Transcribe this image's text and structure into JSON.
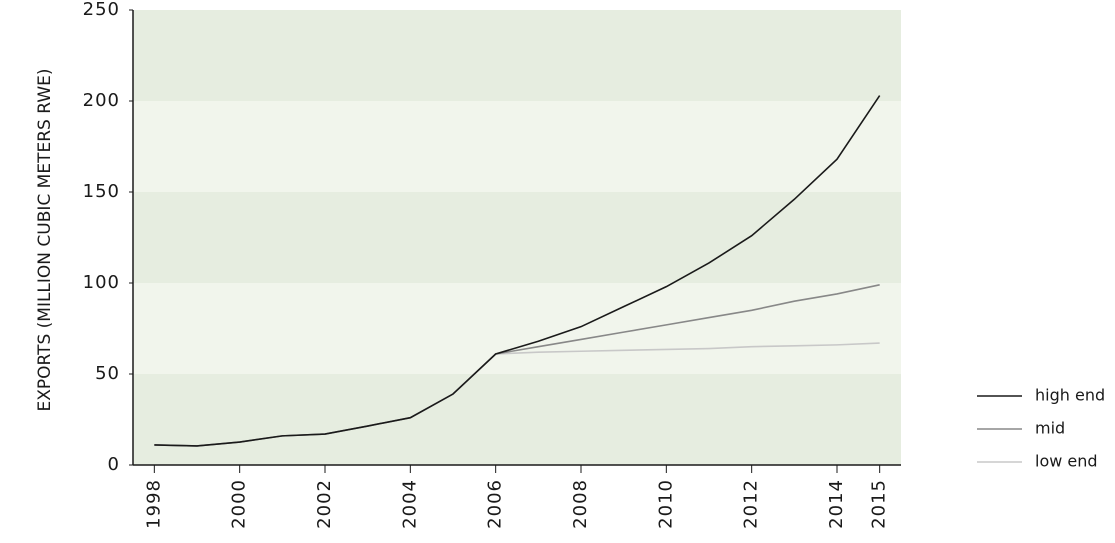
{
  "chart_data": {
    "type": "line",
    "y_label": "EXPORTS (MILLION CUBIC METERS RWE)",
    "x": [
      1998,
      1999,
      2000,
      2001,
      2002,
      2003,
      2004,
      2005,
      2006,
      2007,
      2008,
      2009,
      2010,
      2011,
      2012,
      2013,
      2014,
      2015
    ],
    "series": [
      {
        "name": "high end",
        "color": "#1a1a1a",
        "values": [
          11,
          10.5,
          12.6,
          16,
          17,
          21.4,
          26,
          39,
          61,
          68,
          76,
          87,
          98,
          111,
          126,
          146,
          168,
          203
        ]
      },
      {
        "name": "mid",
        "color": "#888888",
        "values": [
          11,
          10.5,
          12.6,
          16,
          17,
          21.4,
          26,
          39,
          61,
          65,
          69,
          73,
          77,
          81,
          85,
          90,
          94,
          99
        ]
      },
      {
        "name": "low end",
        "color": "#c8c8c8",
        "values": [
          11,
          10.5,
          12.6,
          16,
          17,
          21.4,
          26,
          39,
          61,
          62,
          62.5,
          63,
          63.5,
          64,
          65,
          65.5,
          66,
          67
        ]
      }
    ],
    "xlim": [
      1997.5,
      2015.5
    ],
    "xticks": [
      1998,
      2000,
      2002,
      2004,
      2006,
      2008,
      2010,
      2012,
      2014,
      2015
    ],
    "ylim": [
      0,
      250
    ],
    "yticks": [
      0,
      50,
      100,
      150,
      200,
      250
    ],
    "band_colors": [
      "#e6ede0",
      "#f1f5ec"
    ],
    "legend": "right"
  }
}
